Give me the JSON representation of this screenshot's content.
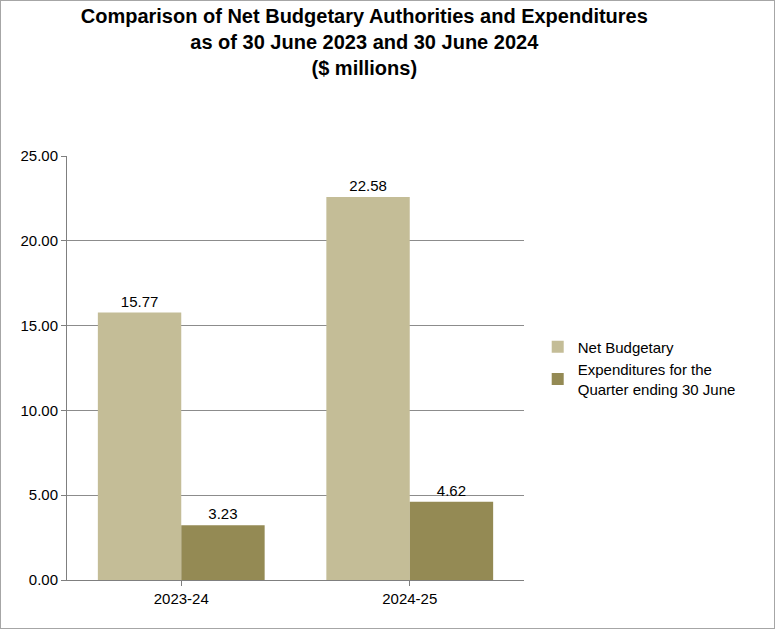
{
  "chart_data": {
    "type": "bar",
    "title": [
      "Comparison of Net Budgetary Authorities and Expenditures",
      "as of 30 June 2023 and 30 June 2024",
      "($ millions)"
    ],
    "categories": [
      "2023-24",
      "2024-25"
    ],
    "series": [
      {
        "name": "Net Budgetary",
        "color": "#c4bd97",
        "values": [
          15.77,
          22.58
        ]
      },
      {
        "name": "Expenditures for the Quarter ending 30 June",
        "color": "#948a54",
        "values": [
          3.23,
          4.62
        ]
      }
    ],
    "ylim": [
      0,
      25
    ],
    "yticks": [
      {
        "value": 0,
        "label": "0.00"
      },
      {
        "value": 5,
        "label": "5.00"
      },
      {
        "value": 10,
        "label": "10.00"
      },
      {
        "value": 15,
        "label": "15.00"
      },
      {
        "value": 20,
        "label": "20.00"
      },
      {
        "value": 25,
        "label": "25.00"
      }
    ],
    "grid": true,
    "legend": "right",
    "data_labels": true
  }
}
